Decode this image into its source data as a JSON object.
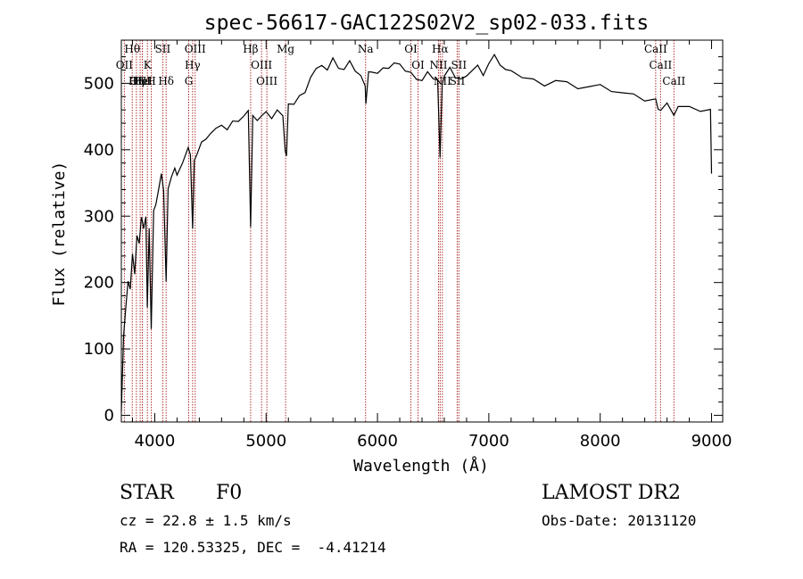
{
  "title": "spec-56617-GAC122S02V2_sp02-033.fits",
  "footer": {
    "class_label": "STAR",
    "subclass": "F0",
    "survey": "LAMOST DR2",
    "cz": "cz = 22.8 ± 1.5 km/s",
    "obs_date": "Obs-Date: 20131120",
    "coords": "RA = 120.53325, DEC =  -4.41214"
  },
  "chart_data": {
    "type": "line",
    "title": "spec-56617-GAC122S02V2_sp02-033.fits",
    "xlabel": "Wavelength (Å)",
    "ylabel": "Flux (relative)",
    "xlim": [
      3700,
      9100
    ],
    "ylim": [
      -10,
      565
    ],
    "x_ticks": [
      4000,
      5000,
      6000,
      7000,
      8000,
      9000
    ],
    "y_ticks": [
      0,
      100,
      200,
      300,
      400,
      500
    ],
    "grid": false,
    "series": [
      {
        "x": [
          3700,
          3720,
          3740,
          3760,
          3780,
          3800,
          3820,
          3840,
          3860,
          3880,
          3890,
          3900,
          3920,
          3933,
          3950,
          3968,
          3990,
          4010,
          4030,
          4060,
          4080,
          4102,
          4120,
          4150,
          4180,
          4200,
          4250,
          4300,
          4320,
          4340,
          4355,
          4380,
          4420,
          4460,
          4500,
          4550,
          4600,
          4650,
          4700,
          4750,
          4800,
          4840,
          4861,
          4880,
          4920,
          4960,
          5000,
          5050,
          5100,
          5150,
          5172,
          5183,
          5200,
          5250,
          5300,
          5350,
          5400,
          5450,
          5500,
          5550,
          5600,
          5650,
          5700,
          5750,
          5800,
          5850,
          5890,
          5896,
          5920,
          5950,
          6000,
          6050,
          6100,
          6150,
          6200,
          6250,
          6300,
          6350,
          6400,
          6450,
          6500,
          6540,
          6562,
          6580,
          6600,
          6650,
          6700,
          6750,
          6800,
          6850,
          6900,
          6950,
          7000,
          7050,
          7100,
          7150,
          7200,
          7300,
          7400,
          7500,
          7600,
          7700,
          7800,
          7900,
          8000,
          8100,
          8200,
          8300,
          8400,
          8498,
          8520,
          8542,
          8600,
          8662,
          8700,
          8800,
          8900,
          8990,
          9000
        ],
        "y": [
          10,
          120,
          160,
          205,
          190,
          240,
          215,
          270,
          255,
          300,
          290,
          285,
          300,
          160,
          285,
          130,
          305,
          320,
          335,
          360,
          340,
          200,
          345,
          360,
          370,
          365,
          380,
          400,
          395,
          280,
          380,
          395,
          410,
          420,
          425,
          430,
          440,
          430,
          440,
          445,
          450,
          455,
          285,
          450,
          448,
          452,
          455,
          450,
          460,
          448,
          400,
          390,
          465,
          470,
          480,
          490,
          510,
          520,
          530,
          520,
          535,
          525,
          520,
          530,
          520,
          510,
          500,
          470,
          515,
          520,
          515,
          520,
          525,
          530,
          525,
          520,
          515,
          510,
          505,
          515,
          510,
          505,
          385,
          500,
          510,
          520,
          510,
          505,
          515,
          520,
          525,
          515,
          530,
          540,
          530,
          520,
          515,
          510,
          505,
          500,
          505,
          500,
          495,
          495,
          495,
          490,
          485,
          480,
          475,
          475,
          465,
          460,
          468,
          455,
          465,
          462,
          460,
          460,
          360
        ]
      }
    ],
    "lines": [
      {
        "name": "Hθ",
        "wave": 3798
      },
      {
        "name": "OII",
        "wave": 3727
      },
      {
        "name": "OIII",
        "wave": 3869
      },
      {
        "name": "Hε",
        "wave": 3889
      },
      {
        "name": "HeI",
        "wave": 3889
      },
      {
        "name": "Hη",
        "wave": 3835
      },
      {
        "name": "K",
        "wave": 3934
      },
      {
        "name": "H",
        "wave": 3969
      },
      {
        "name": "SII",
        "wave": 4072
      },
      {
        "name": "Hδ",
        "wave": 4102
      },
      {
        "name": "OIII",
        "wave": 4363
      },
      {
        "name": "Hγ",
        "wave": 4340
      },
      {
        "name": "G",
        "wave": 4305
      },
      {
        "name": "Hβ",
        "wave": 4861
      },
      {
        "name": "OIII",
        "wave": 4959
      },
      {
        "name": "OIII",
        "wave": 5007
      },
      {
        "name": "Mg",
        "wave": 5175
      },
      {
        "name": "Na",
        "wave": 5893
      },
      {
        "name": "OI",
        "wave": 6300
      },
      {
        "name": "OI",
        "wave": 6364
      },
      {
        "name": "Hα",
        "wave": 6563
      },
      {
        "name": "NII",
        "wave": 6548
      },
      {
        "name": "NII",
        "wave": 6583
      },
      {
        "name": "SII",
        "wave": 6716
      },
      {
        "name": "SII",
        "wave": 6731
      },
      {
        "name": "CaII",
        "wave": 8498
      },
      {
        "name": "CaII",
        "wave": 8542
      },
      {
        "name": "CaII",
        "wave": 8662
      }
    ],
    "line_color": "#000000",
    "marker_color": "#b03030"
  }
}
